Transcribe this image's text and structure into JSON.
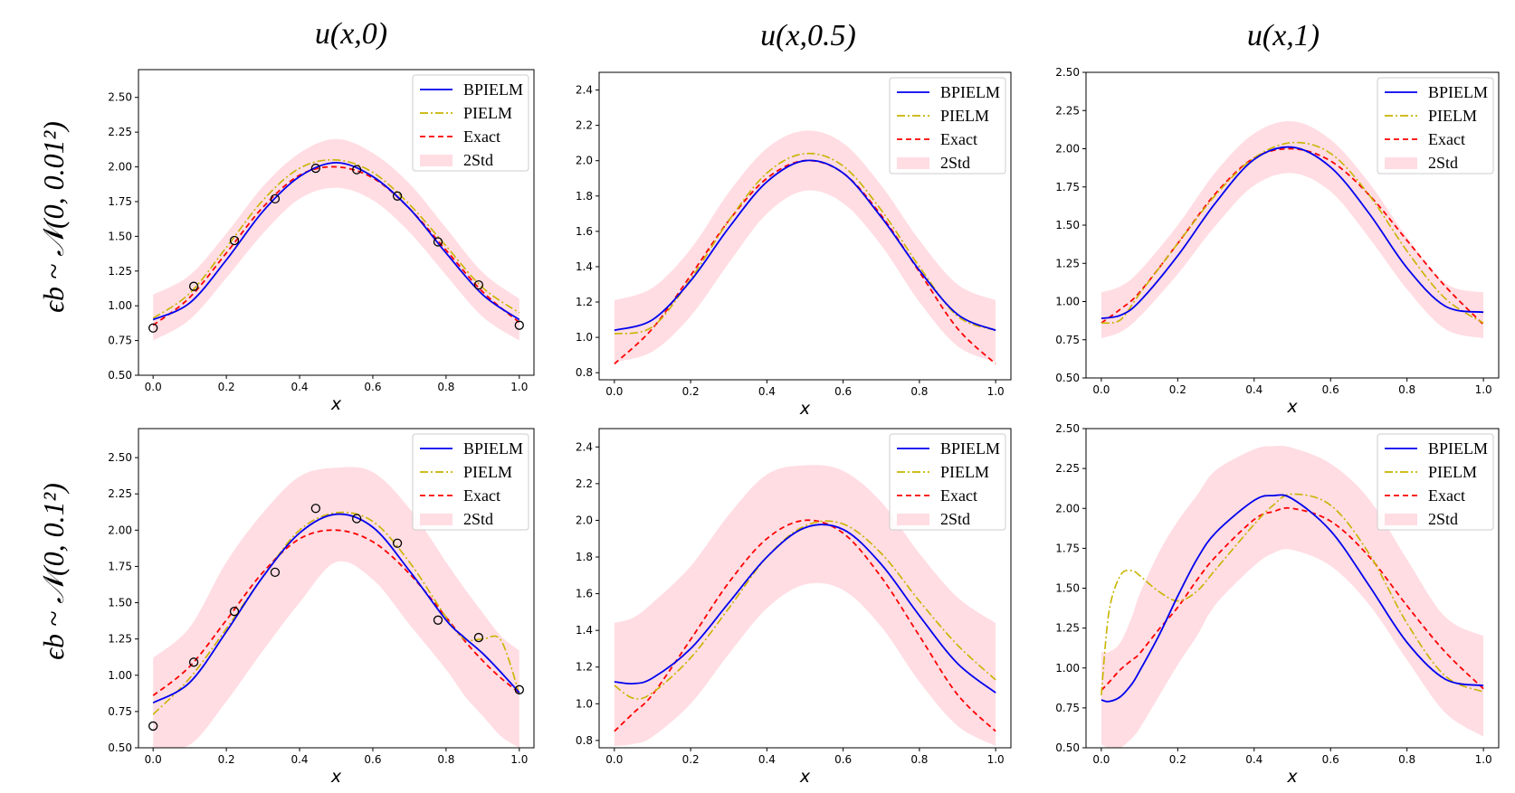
{
  "col_titles": [
    "u(x,0)",
    "u(x,0.5)",
    "u(x,1)"
  ],
  "row_labels": [
    "ϵb ~ 𝒩(0, 0.01²)",
    "ϵb ~ 𝒩(0, 0.1²)"
  ],
  "colors": {
    "bpielm": "#0000ee",
    "pielm": "#c8b400",
    "exact": "#ff0000",
    "band": "#ffdde3",
    "marker": "#000000"
  },
  "chart_data": [
    {
      "id": "r1c1",
      "type": "line",
      "row": 0,
      "col": 0,
      "xlabel": "x",
      "xlim": [
        -0.04,
        1.04
      ],
      "ylim": [
        0.5,
        2.7
      ],
      "xticks": [
        "0.0",
        "0.2",
        "0.4",
        "0.6",
        "0.8",
        "1.0"
      ],
      "yticks": [
        "0.50",
        "0.75",
        "1.00",
        "1.25",
        "1.50",
        "1.75",
        "2.00",
        "2.25",
        "2.50"
      ],
      "legend": [
        "BPIELM",
        "PIELM",
        "Exact",
        "2Std"
      ],
      "x": [
        0.0,
        0.1,
        0.2,
        0.3,
        0.4,
        0.5,
        0.6,
        0.7,
        0.8,
        0.9,
        1.0
      ],
      "bpielm": [
        0.9,
        1.02,
        1.33,
        1.68,
        1.93,
        2.03,
        1.93,
        1.7,
        1.38,
        1.08,
        0.9
      ],
      "pielm": [
        0.91,
        1.09,
        1.42,
        1.76,
        1.99,
        2.05,
        1.96,
        1.73,
        1.43,
        1.13,
        0.95
      ],
      "exact": [
        0.86,
        1.06,
        1.38,
        1.71,
        1.94,
        2.0,
        1.92,
        1.7,
        1.4,
        1.1,
        0.88
      ],
      "band_lo": [
        0.75,
        0.9,
        1.2,
        1.52,
        1.77,
        1.85,
        1.76,
        1.53,
        1.22,
        0.92,
        0.75
      ],
      "band_hi": [
        1.08,
        1.22,
        1.52,
        1.86,
        2.1,
        2.2,
        2.1,
        1.88,
        1.56,
        1.24,
        1.05
      ],
      "obs_x": [
        0.0,
        0.111,
        0.222,
        0.333,
        0.444,
        0.556,
        0.667,
        0.778,
        0.889,
        1.0
      ],
      "obs_y": [
        0.84,
        1.14,
        1.47,
        1.77,
        1.99,
        1.98,
        1.79,
        1.46,
        1.15,
        0.86
      ]
    },
    {
      "id": "r1c2",
      "type": "line",
      "row": 0,
      "col": 1,
      "xlabel": "x",
      "xlim": [
        -0.04,
        1.04
      ],
      "ylim": [
        0.76,
        2.5
      ],
      "xticks": [
        "0.0",
        "0.2",
        "0.4",
        "0.6",
        "0.8",
        "1.0"
      ],
      "yticks": [
        "0.8",
        "1.0",
        "1.2",
        "1.4",
        "1.6",
        "1.8",
        "2.0",
        "2.2",
        "2.4"
      ],
      "legend": [
        "BPIELM",
        "PIELM",
        "Exact",
        "2Std"
      ],
      "x": [
        0.0,
        0.1,
        0.2,
        0.3,
        0.4,
        0.5,
        0.6,
        0.7,
        0.8,
        0.9,
        1.0
      ],
      "bpielm": [
        1.04,
        1.1,
        1.32,
        1.62,
        1.88,
        2.0,
        1.93,
        1.68,
        1.38,
        1.13,
        1.04
      ],
      "pielm": [
        1.02,
        1.06,
        1.33,
        1.66,
        1.93,
        2.04,
        1.97,
        1.72,
        1.4,
        1.12,
        1.04
      ],
      "exact": [
        0.85,
        1.05,
        1.35,
        1.66,
        1.9,
        2.0,
        1.93,
        1.69,
        1.37,
        1.05,
        0.85
      ],
      "band_lo": [
        0.86,
        0.92,
        1.12,
        1.42,
        1.7,
        1.83,
        1.76,
        1.52,
        1.2,
        0.95,
        0.86
      ],
      "band_hi": [
        1.21,
        1.28,
        1.5,
        1.82,
        2.07,
        2.17,
        2.1,
        1.86,
        1.55,
        1.3,
        1.21
      ],
      "obs_x": [],
      "obs_y": []
    },
    {
      "id": "r1c3",
      "type": "line",
      "row": 0,
      "col": 2,
      "xlabel": "x",
      "xlim": [
        -0.04,
        1.04
      ],
      "ylim": [
        0.5,
        2.5
      ],
      "xticks": [
        "0.0",
        "0.2",
        "0.4",
        "0.6",
        "0.8",
        "1.0"
      ],
      "yticks": [
        "0.50",
        "0.75",
        "1.00",
        "1.25",
        "1.50",
        "1.75",
        "2.00",
        "2.25",
        "2.50"
      ],
      "legend": [
        "BPIELM",
        "PIELM",
        "Exact",
        "2Std"
      ],
      "x": [
        0.0,
        0.05,
        0.1,
        0.2,
        0.3,
        0.4,
        0.5,
        0.6,
        0.7,
        0.8,
        0.9,
        1.0
      ],
      "bpielm": [
        0.89,
        0.91,
        1.0,
        1.3,
        1.65,
        1.93,
        2.01,
        1.88,
        1.58,
        1.22,
        0.97,
        0.93
      ],
      "pielm": [
        0.86,
        0.88,
        1.05,
        1.38,
        1.7,
        1.94,
        2.04,
        1.97,
        1.7,
        1.33,
        1.02,
        0.86
      ],
      "exact": [
        0.86,
        0.95,
        1.06,
        1.38,
        1.71,
        1.94,
        2.0,
        1.92,
        1.7,
        1.4,
        1.1,
        0.85
      ],
      "band_lo": [
        0.76,
        0.8,
        0.9,
        1.18,
        1.5,
        1.76,
        1.84,
        1.72,
        1.42,
        1.08,
        0.82,
        0.76
      ],
      "band_hi": [
        1.06,
        1.1,
        1.2,
        1.5,
        1.85,
        2.1,
        2.18,
        2.06,
        1.78,
        1.42,
        1.12,
        1.06
      ],
      "obs_x": [],
      "obs_y": []
    },
    {
      "id": "r2c1",
      "type": "line",
      "row": 1,
      "col": 0,
      "xlabel": "x",
      "xlim": [
        -0.04,
        1.04
      ],
      "ylim": [
        0.5,
        2.7
      ],
      "xticks": [
        "0.0",
        "0.2",
        "0.4",
        "0.6",
        "0.8",
        "1.0"
      ],
      "yticks": [
        "0.50",
        "0.75",
        "1.00",
        "1.25",
        "1.50",
        "1.75",
        "2.00",
        "2.25",
        "2.50"
      ],
      "legend": [
        "BPIELM",
        "PIELM",
        "Exact",
        "2Std"
      ],
      "x": [
        0.0,
        0.1,
        0.2,
        0.3,
        0.4,
        0.5,
        0.6,
        0.7,
        0.8,
        0.85,
        0.9,
        0.95,
        1.0
      ],
      "bpielm": [
        0.81,
        0.95,
        1.3,
        1.68,
        1.98,
        2.11,
        2.02,
        1.72,
        1.38,
        1.26,
        1.15,
        1.02,
        0.88
      ],
      "pielm": [
        0.73,
        0.98,
        1.32,
        1.68,
        2.0,
        2.12,
        2.06,
        1.78,
        1.4,
        1.25,
        1.25,
        1.24,
        0.87
      ],
      "exact": [
        0.86,
        1.06,
        1.38,
        1.71,
        1.94,
        2.0,
        1.92,
        1.7,
        1.4,
        1.24,
        1.1,
        0.98,
        0.88
      ],
      "band_lo": [
        0.5,
        0.52,
        0.82,
        1.17,
        1.5,
        1.78,
        1.66,
        1.35,
        1.04,
        0.86,
        0.72,
        0.58,
        0.5
      ],
      "band_hi": [
        1.12,
        1.33,
        1.78,
        2.12,
        2.37,
        2.43,
        2.4,
        2.15,
        1.78,
        1.6,
        1.43,
        1.27,
        1.17
      ],
      "obs_x": [
        0.0,
        0.111,
        0.222,
        0.333,
        0.444,
        0.556,
        0.667,
        0.778,
        0.889,
        1.0
      ],
      "obs_y": [
        0.65,
        1.09,
        1.44,
        1.71,
        2.15,
        2.08,
        1.91,
        1.38,
        1.26,
        0.9
      ]
    },
    {
      "id": "r2c2",
      "type": "line",
      "row": 1,
      "col": 1,
      "xlabel": "x",
      "xlim": [
        -0.04,
        1.04
      ],
      "ylim": [
        0.76,
        2.5
      ],
      "xticks": [
        "0.0",
        "0.2",
        "0.4",
        "0.6",
        "0.8",
        "1.0"
      ],
      "yticks": [
        "0.8",
        "1.0",
        "1.2",
        "1.4",
        "1.6",
        "1.8",
        "2.0",
        "2.2",
        "2.4"
      ],
      "legend": [
        "BPIELM",
        "PIELM",
        "Exact",
        "2Std"
      ],
      "x": [
        0.0,
        0.05,
        0.1,
        0.2,
        0.3,
        0.4,
        0.5,
        0.6,
        0.7,
        0.8,
        0.9,
        1.0
      ],
      "bpielm": [
        1.12,
        1.11,
        1.14,
        1.3,
        1.55,
        1.8,
        1.96,
        1.95,
        1.76,
        1.48,
        1.22,
        1.06
      ],
      "pielm": [
        1.1,
        1.03,
        1.06,
        1.25,
        1.52,
        1.8,
        1.97,
        1.98,
        1.82,
        1.56,
        1.32,
        1.13
      ],
      "exact": [
        0.85,
        0.95,
        1.05,
        1.35,
        1.66,
        1.9,
        2.0,
        1.93,
        1.69,
        1.37,
        1.05,
        0.85
      ],
      "band_lo": [
        0.77,
        0.78,
        0.82,
        1.0,
        1.27,
        1.52,
        1.65,
        1.62,
        1.42,
        1.12,
        0.88,
        0.77
      ],
      "band_hi": [
        1.44,
        1.47,
        1.55,
        1.75,
        2.03,
        2.25,
        2.3,
        2.27,
        2.1,
        1.82,
        1.58,
        1.44
      ],
      "obs_x": [],
      "obs_y": []
    },
    {
      "id": "r2c3",
      "type": "line",
      "row": 1,
      "col": 2,
      "xlabel": "x",
      "xlim": [
        -0.04,
        1.04
      ],
      "ylim": [
        0.5,
        2.5
      ],
      "xticks": [
        "0.0",
        "0.2",
        "0.4",
        "0.6",
        "0.8",
        "1.0"
      ],
      "yticks": [
        "0.50",
        "0.75",
        "1.00",
        "1.25",
        "1.50",
        "1.75",
        "2.00",
        "2.25",
        "2.50"
      ],
      "legend": [
        "BPIELM",
        "PIELM",
        "Exact",
        "2Std"
      ],
      "x": [
        0.0,
        0.02,
        0.05,
        0.08,
        0.1,
        0.15,
        0.2,
        0.25,
        0.3,
        0.4,
        0.45,
        0.5,
        0.6,
        0.7,
        0.8,
        0.9,
        1.0
      ],
      "bpielm": [
        0.8,
        0.79,
        0.82,
        0.9,
        0.98,
        1.2,
        1.45,
        1.68,
        1.85,
        2.05,
        2.08,
        2.06,
        1.86,
        1.52,
        1.16,
        0.93,
        0.89
      ],
      "pielm": [
        0.83,
        1.35,
        1.58,
        1.61,
        1.58,
        1.48,
        1.42,
        1.48,
        1.62,
        1.9,
        2.02,
        2.09,
        2.02,
        1.72,
        1.28,
        0.95,
        0.85
      ],
      "exact": [
        0.86,
        0.91,
        0.99,
        1.05,
        1.09,
        1.24,
        1.38,
        1.55,
        1.7,
        1.93,
        1.98,
        2.0,
        1.92,
        1.7,
        1.39,
        1.1,
        0.87
      ],
      "band_lo": [
        0.52,
        0.5,
        0.5,
        0.56,
        0.62,
        0.82,
        1.02,
        1.2,
        1.4,
        1.64,
        1.72,
        1.74,
        1.64,
        1.4,
        1.05,
        0.72,
        0.57
      ],
      "band_hi": [
        1.1,
        1.1,
        1.16,
        1.32,
        1.46,
        1.72,
        1.92,
        2.08,
        2.24,
        2.37,
        2.39,
        2.38,
        2.28,
        2.06,
        1.68,
        1.32,
        1.2
      ],
      "obs_x": [],
      "obs_y": []
    }
  ]
}
